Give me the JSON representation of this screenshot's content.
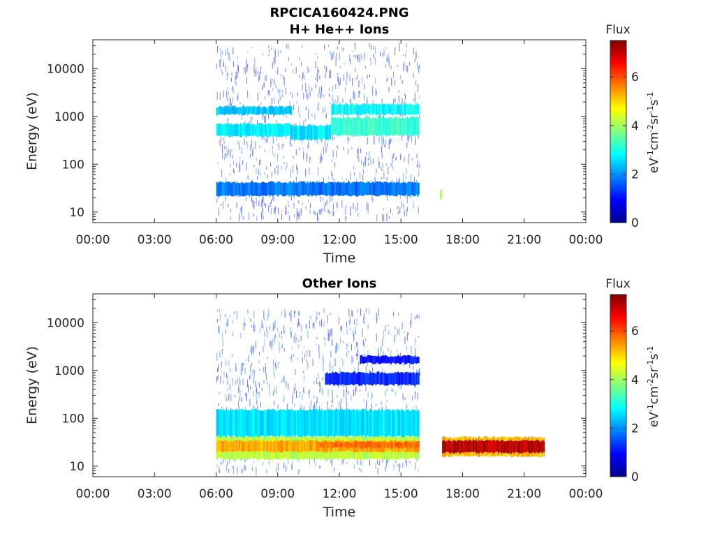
{
  "figure": {
    "title_line1": "RPCICA160424.PNG"
  },
  "colorbar": {
    "title": "Flux",
    "unit_label": "eV-1cm-2sr-1s-1",
    "range": [
      0,
      7.5
    ],
    "ticks": [
      "0",
      "2",
      "4",
      "6"
    ],
    "colormap": [
      "#00008f",
      "#0000ff",
      "#0080ff",
      "#00ffff",
      "#80ff80",
      "#ffff00",
      "#ff8000",
      "#ff0000",
      "#800000"
    ]
  },
  "chart_data": [
    {
      "type": "heatmap",
      "title": "H+ He++ Ions",
      "xlabel": "Time",
      "ylabel": "Energy (eV)",
      "y_scale": "log",
      "ylim": [
        6,
        40000
      ],
      "xlim": [
        "00:00",
        "24:00"
      ],
      "x_ticks": [
        "00:00",
        "03:00",
        "06:00",
        "09:00",
        "12:00",
        "15:00",
        "18:00",
        "21:00",
        "00:00"
      ],
      "y_ticks": [
        "10",
        "100",
        "1000",
        "10000"
      ],
      "colorbar_label": "Flux",
      "bands": [
        {
          "start_hour": 6.0,
          "end_hour": 15.9,
          "e_low": 22,
          "e_high": 42,
          "flux": 1.8
        },
        {
          "start_hour": 6.0,
          "end_hour": 9.6,
          "e_low": 380,
          "e_high": 700,
          "flux": 2.7
        },
        {
          "start_hour": 9.6,
          "end_hour": 11.6,
          "e_low": 330,
          "e_high": 650,
          "flux": 2.6
        },
        {
          "start_hour": 11.6,
          "end_hour": 15.9,
          "e_low": 400,
          "e_high": 950,
          "flux": 3.2
        },
        {
          "start_hour": 6.0,
          "end_hour": 9.7,
          "e_low": 1100,
          "e_high": 1600,
          "flux": 2.4
        },
        {
          "start_hour": 11.6,
          "end_hour": 15.9,
          "e_low": 1100,
          "e_high": 1800,
          "flux": 2.8
        },
        {
          "start_hour": 16.9,
          "end_hour": 17.0,
          "e_low": 18,
          "e_high": 30,
          "flux": 3.8
        }
      ],
      "sparse": {
        "start_hour": 6.0,
        "end_hour": 15.9,
        "e_low": 8,
        "e_high": 35000,
        "flux": 1.2
      }
    },
    {
      "type": "heatmap",
      "title": "Other Ions",
      "xlabel": "Time",
      "ylabel": "Energy (eV)",
      "y_scale": "log",
      "ylim": [
        6,
        40000
      ],
      "xlim": [
        "00:00",
        "24:00"
      ],
      "x_ticks": [
        "00:00",
        "03:00",
        "06:00",
        "09:00",
        "12:00",
        "15:00",
        "18:00",
        "21:00",
        "00:00"
      ],
      "y_ticks": [
        "10",
        "100",
        "1000",
        "10000"
      ],
      "colorbar_label": "Flux",
      "bands": [
        {
          "start_hour": 6.0,
          "end_hour": 15.9,
          "e_low": 14,
          "e_high": 42,
          "flux": 4.2
        },
        {
          "start_hour": 6.0,
          "end_hour": 15.9,
          "e_low": 20,
          "e_high": 34,
          "flux": 5.3
        },
        {
          "start_hour": 11.0,
          "end_hour": 15.9,
          "e_low": 24,
          "e_high": 32,
          "flux": 5.8
        },
        {
          "start_hour": 6.0,
          "end_hour": 15.9,
          "e_low": 42,
          "e_high": 150,
          "flux": 2.6
        },
        {
          "start_hour": 11.3,
          "end_hour": 15.9,
          "e_low": 500,
          "e_high": 900,
          "flux": 1.2
        },
        {
          "start_hour": 13.0,
          "end_hour": 15.9,
          "e_low": 1400,
          "e_high": 2000,
          "flux": 1.0
        },
        {
          "start_hour": 17.0,
          "end_hour": 22.0,
          "e_low": 16,
          "e_high": 40,
          "flux": 5.2
        },
        {
          "start_hour": 17.0,
          "end_hour": 22.0,
          "e_low": 19,
          "e_high": 34,
          "flux": 7.1
        }
      ],
      "sparse": {
        "start_hour": 6.0,
        "end_hour": 15.9,
        "e_low": 8,
        "e_high": 20000,
        "flux": 1.4
      }
    }
  ]
}
